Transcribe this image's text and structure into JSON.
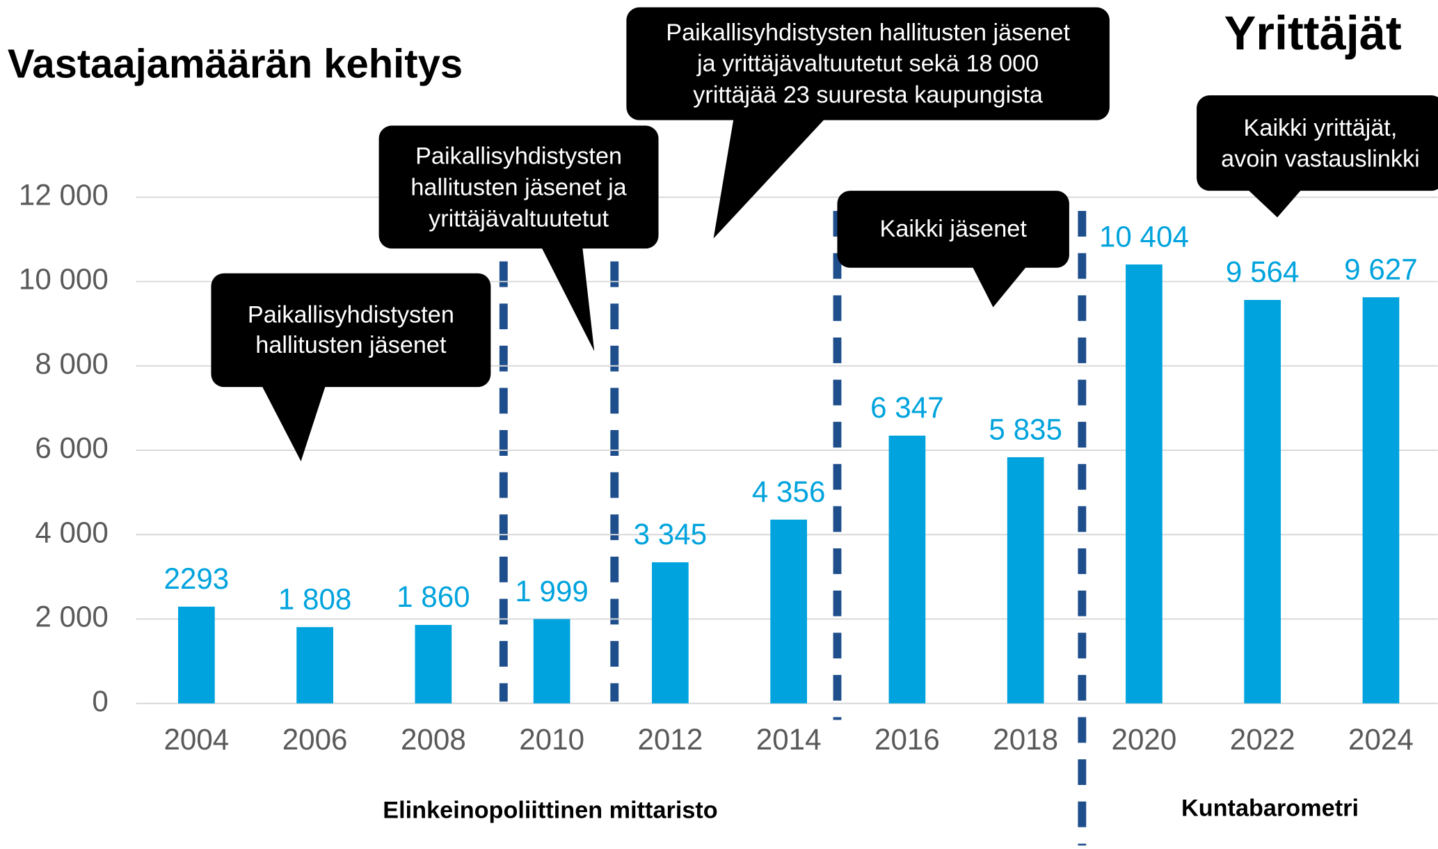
{
  "chart_data": {
    "type": "bar",
    "title": "Vastaajamäärän kehitys",
    "logo": "Yrittäjät",
    "categories": [
      "2004",
      "2006",
      "2008",
      "2010",
      "2012",
      "2014",
      "2016",
      "2018",
      "2020",
      "2022",
      "2024"
    ],
    "values": [
      2293,
      1808,
      1860,
      1999,
      3345,
      4356,
      6347,
      5835,
      10404,
      9564,
      9627
    ],
    "value_labels": [
      "2293",
      "1 808",
      "1 860",
      "1 999",
      "3 345",
      "4 356",
      "6 347",
      "5 835",
      "10 404",
      "9 564",
      "9 627"
    ],
    "color": "#00a3dd",
    "label_color": "#00a3dd",
    "ylim": [
      0,
      12000
    ],
    "yticks": [
      0,
      {
        "value": 2000,
        "label": "2 000"
      },
      {
        "value": 4000,
        "label": "4 000"
      },
      {
        "value": 6000,
        "label": "6 000"
      },
      {
        "value": 8000,
        "label": "8 000"
      },
      {
        "value": 10000,
        "label": "10 000"
      },
      {
        "value": 12000,
        "label": "12 000"
      }
    ],
    "grid": true,
    "annotations": [
      {
        "lines": [
          "Paikallisyhdistysten",
          "hallitusten jäsenet"
        ]
      },
      {
        "lines": [
          "Paikallisyhdistysten",
          "hallitusten jäsenet ja",
          "yrittäjävaltuutetut"
        ]
      },
      {
        "lines": [
          "Paikallisyhdistysten hallitusten jäsenet",
          "ja yrittäjävaltuutetut sekä 18 000",
          "yrittäjää 23 suuresta kaupungista"
        ]
      },
      {
        "lines": [
          "Kaikki jäsenet"
        ]
      },
      {
        "lines": [
          "Kaikki yrittäjät,",
          "avoin vastauslinkki"
        ]
      }
    ],
    "sections": [
      "Elinkeinopoliittinen mittaristo",
      "Kuntabarometri"
    ]
  }
}
